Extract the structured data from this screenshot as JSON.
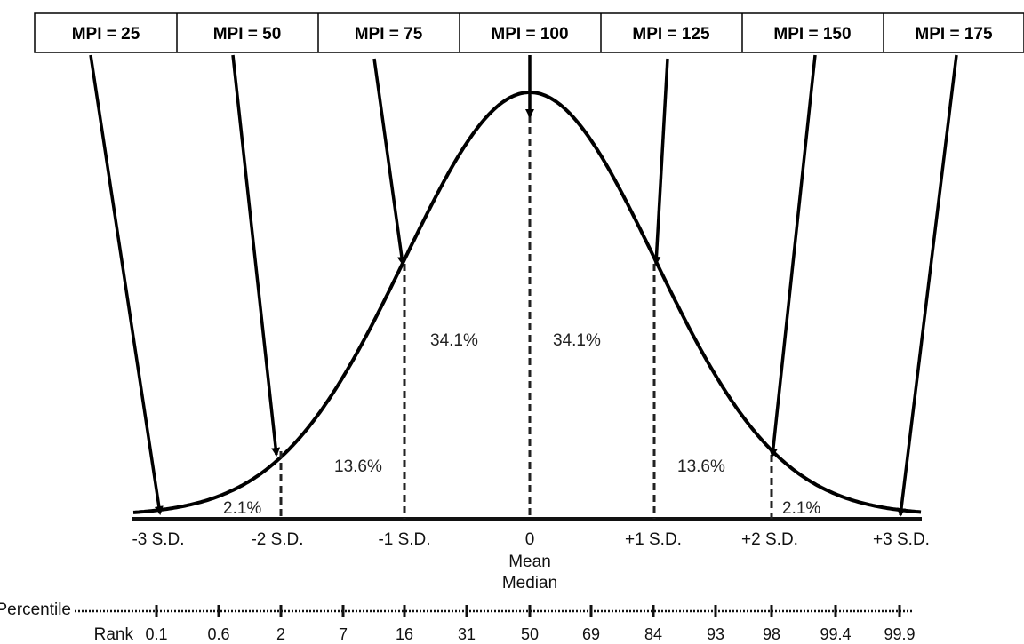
{
  "mpi_labels": [
    "MPI = 25",
    "MPI = 50",
    "MPI = 75",
    "MPI = 100",
    "MPI = 125",
    "MPI = 150",
    "MPI = 175"
  ],
  "region_percents": {
    "left_tail": "2.1%",
    "left_second": "13.6%",
    "left_center": "34.1%",
    "right_center": "34.1%",
    "right_second": "13.6%",
    "right_tail": "2.1%"
  },
  "sd_labels": [
    "-3 S.D.",
    "-2 S.D.",
    "-1 S.D.",
    "0",
    "+1 S.D.",
    "+2 S.D.",
    "+3 S.D."
  ],
  "mean_label": "Mean",
  "median_label": "Median",
  "percentile_label": "Percentile",
  "rank_label": "Rank",
  "percentile_ranks": [
    "0.1",
    "0.6",
    "2",
    "7",
    "16",
    "31",
    "50",
    "69",
    "84",
    "93",
    "98",
    "99.4",
    "99.9"
  ]
}
